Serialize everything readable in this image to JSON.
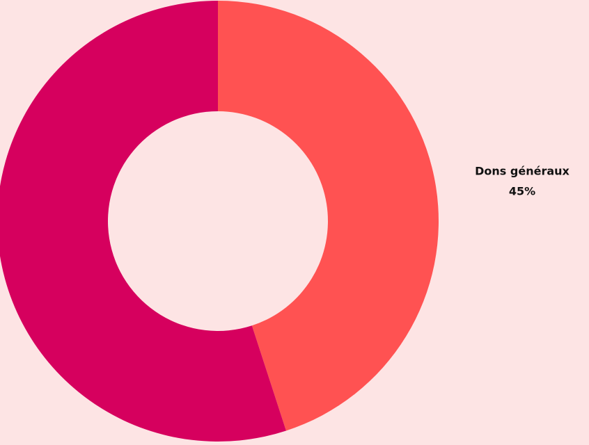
{
  "colors": {
    "background": "#FDE4E4",
    "label_text": "#111111"
  },
  "chart_data": {
    "type": "pie",
    "style": "donut",
    "start_angle": "top",
    "direction": "clockwise",
    "slices": [
      {
        "label": "Dons généraux",
        "value": 45,
        "value_label": "45%",
        "color": "#FF5252",
        "show_label": true
      },
      {
        "label": "",
        "value": 55,
        "value_label": "",
        "color": "#D6005E",
        "show_label": false
      }
    ]
  }
}
